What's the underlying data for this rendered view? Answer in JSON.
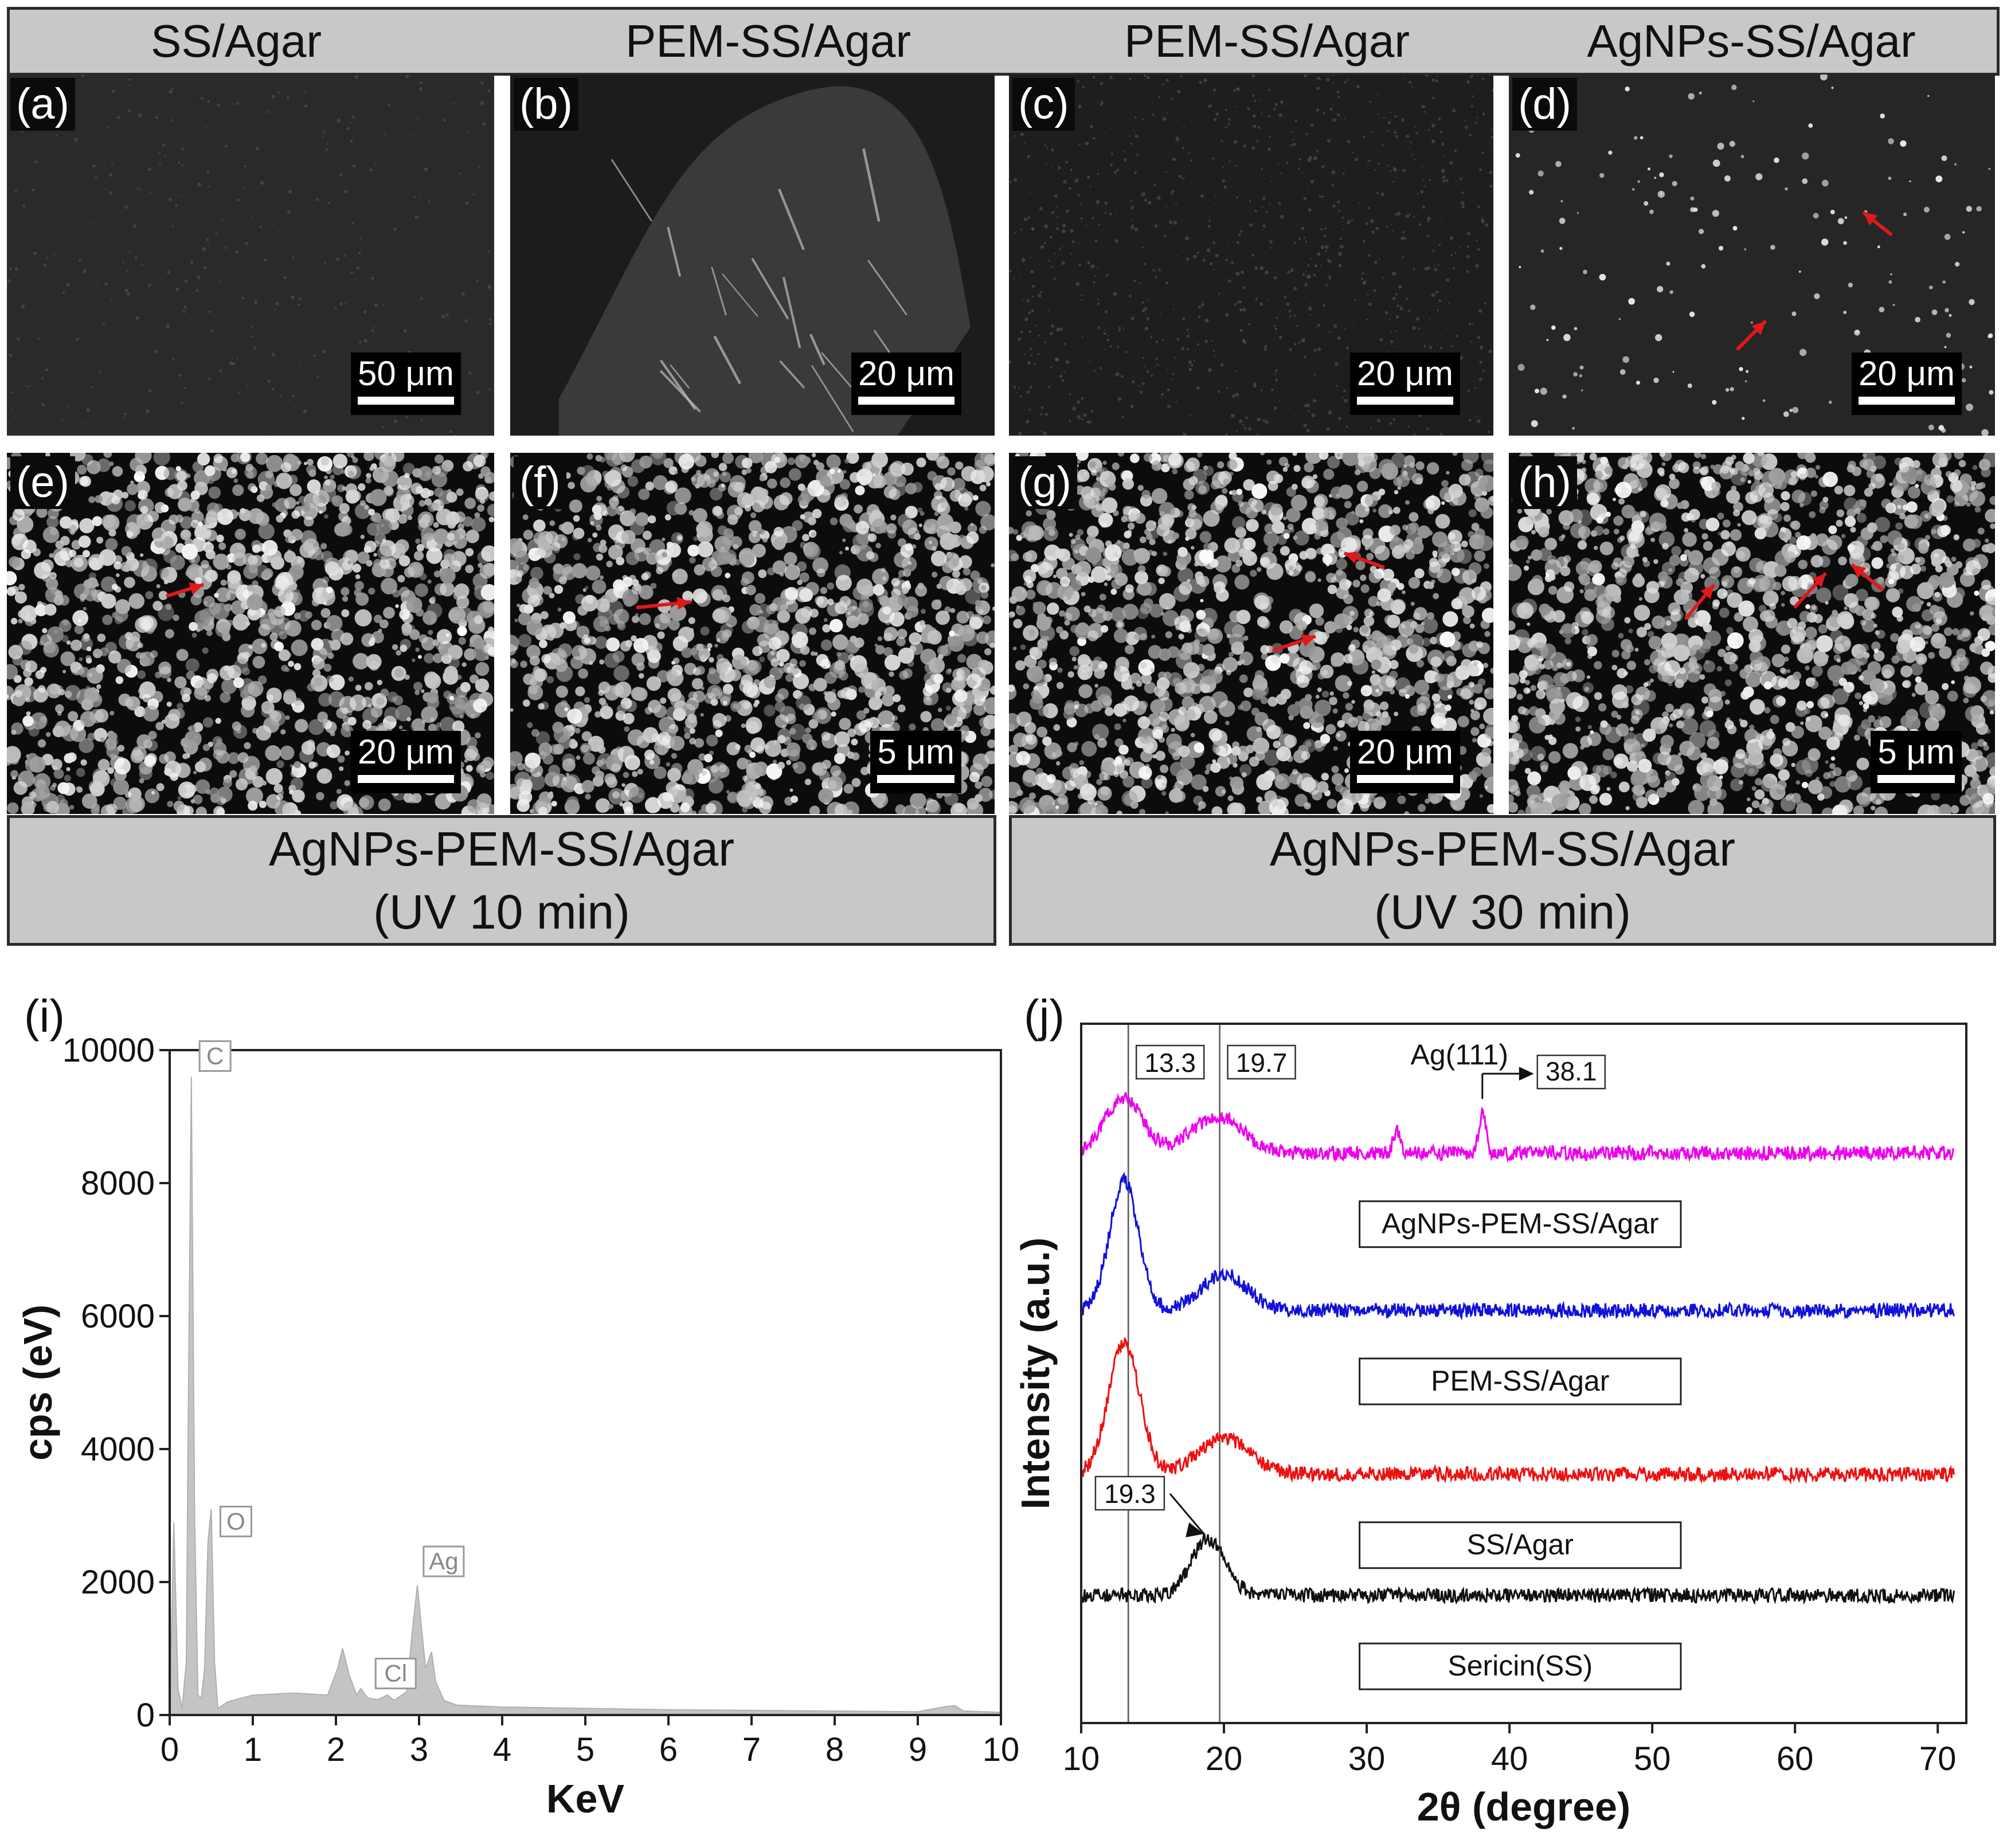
{
  "headers_top": [
    "SS/Agar",
    "PEM-SS/Agar",
    "PEM-SS/Agar",
    "AgNPs-SS/Agar"
  ],
  "headers_bottom": [
    {
      "line1": "AgNPs-PEM-SS/Agar",
      "line2": "(UV 10 min)"
    },
    {
      "line1": "AgNPs-PEM-SS/Agar",
      "line2": "(UV 30 min)"
    }
  ],
  "panels": [
    {
      "label": "(a)",
      "scale": "50 μm",
      "texture": "smooth"
    },
    {
      "label": "(b)",
      "scale": "20 μm",
      "texture": "folded"
    },
    {
      "label": "(c)",
      "scale": "20 μm",
      "texture": "fine"
    },
    {
      "label": "(d)",
      "scale": "20 μm",
      "texture": "sparse"
    },
    {
      "label": "(e)",
      "scale": "20 μm",
      "texture": "dense"
    },
    {
      "label": "(f)",
      "scale": "5 μm",
      "texture": "dense"
    },
    {
      "label": "(g)",
      "scale": "20 μm",
      "texture": "dense"
    },
    {
      "label": "(h)",
      "scale": "5 μm",
      "texture": "dense"
    }
  ],
  "colors": {
    "arrow": "#e0191c",
    "eds_fill": "#c4c4c4",
    "header_bg": "#c8c8c8"
  },
  "chart_data": [
    {
      "panel_label": "(i)",
      "type": "area",
      "xlabel": "KeV",
      "ylabel": "cps (eV)",
      "xlim": [
        0,
        10
      ],
      "ylim": [
        0,
        10000
      ],
      "xticks": [
        0,
        1,
        2,
        3,
        4,
        5,
        6,
        7,
        8,
        9,
        10
      ],
      "yticks": [
        0,
        2000,
        4000,
        6000,
        8000,
        10000
      ],
      "x": [
        0,
        0.05,
        0.1,
        0.15,
        0.2,
        0.22,
        0.26,
        0.3,
        0.34,
        0.38,
        0.42,
        0.46,
        0.5,
        0.54,
        0.58,
        0.7,
        1.0,
        1.5,
        1.9,
        2.02,
        2.08,
        2.16,
        2.25,
        2.3,
        2.38,
        2.5,
        2.62,
        2.7,
        2.85,
        2.93,
        2.98,
        3.03,
        3.08,
        3.15,
        3.2,
        3.3,
        3.45,
        4.0,
        5.0,
        6.0,
        7.0,
        8.0,
        9.0,
        9.35,
        9.45,
        9.55,
        10.0
      ],
      "values": [
        0,
        2900,
        400,
        100,
        800,
        4000,
        9600,
        3000,
        300,
        250,
        700,
        2600,
        3100,
        800,
        100,
        200,
        300,
        330,
        300,
        700,
        1000,
        600,
        300,
        400,
        260,
        230,
        300,
        220,
        350,
        1400,
        1950,
        1300,
        700,
        950,
        500,
        220,
        150,
        120,
        100,
        80,
        70,
        60,
        50,
        130,
        140,
        60,
        40
      ],
      "peak_labels": [
        {
          "text": "C",
          "x": 0.27,
          "y": 9600
        },
        {
          "text": "O",
          "x": 0.52,
          "y": 2600
        },
        {
          "text": "Ag",
          "x": 3.02,
          "y": 2000
        },
        {
          "text": "Cl",
          "x": 2.65,
          "y": 400
        }
      ]
    },
    {
      "panel_label": "(j)",
      "type": "line",
      "xlabel": "2θ (degree)",
      "ylabel": "Intensity (a.u.)",
      "xlim": [
        10,
        72
      ],
      "xticks": [
        10,
        20,
        30,
        40,
        50,
        60,
        70
      ],
      "ref_lines": [
        13.3,
        19.7
      ],
      "ref_labels": [
        "13.3",
        "19.7"
      ],
      "series": [
        {
          "name": "AgNPs-PEM-SS/Agar",
          "color": "#ee00ee",
          "baseline": 8.0,
          "peaks": [
            [
              13.0,
              0.85,
              1.3
            ],
            [
              19.5,
              0.55,
              1.8
            ],
            [
              32.1,
              0.35,
              0.25
            ],
            [
              38.1,
              0.6,
              0.25
            ]
          ]
        },
        {
          "name": "PEM-SS/Agar",
          "color": "#1010dd",
          "baseline": 5.6,
          "peaks": [
            [
              13.0,
              2.0,
              1.0
            ],
            [
              20.0,
              0.55,
              1.6
            ]
          ]
        },
        {
          "name": "SS/Agar",
          "color": "#ee1010",
          "baseline": 3.1,
          "peaks": [
            [
              13.0,
              2.0,
              1.1
            ],
            [
              20.0,
              0.55,
              1.8
            ]
          ]
        },
        {
          "name": "Sericin(SS)",
          "color": "#111111",
          "baseline": 1.25,
          "peaks": [
            [
              18.9,
              0.85,
              1.2
            ]
          ]
        }
      ],
      "annotations": {
        "ag": "Ag(111)",
        "ag_value": "38.1",
        "ss_value": "19.3"
      }
    }
  ]
}
